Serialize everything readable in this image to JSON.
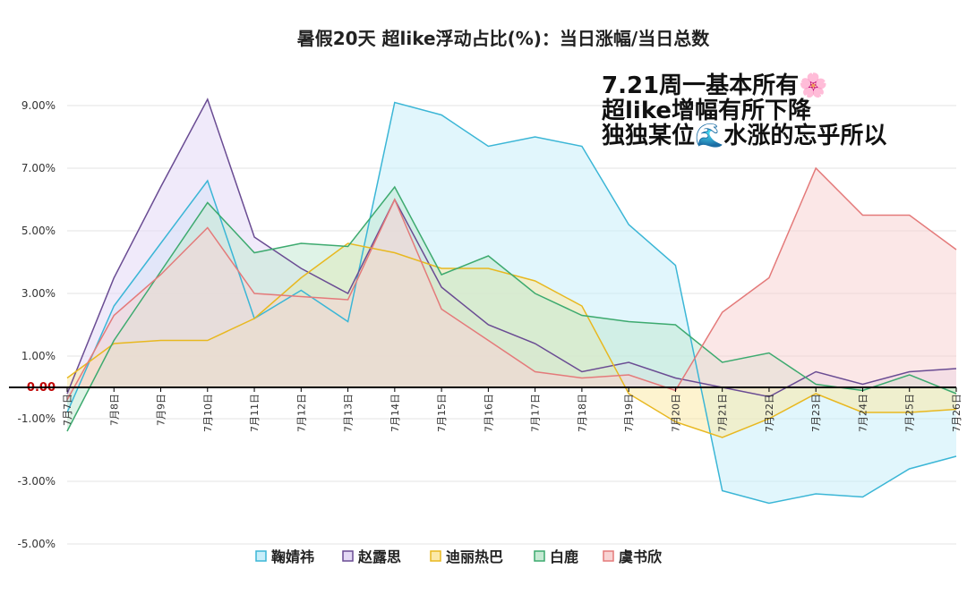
{
  "chart_data": {
    "type": "area",
    "title": "暑假20天 超like浮动占比(%)：当日涨幅/当日总数",
    "xlabel": "",
    "ylabel": "",
    "categories": [
      "7月7日",
      "7月8日",
      "7月9日",
      "7月10日",
      "7月11日",
      "7月12日",
      "7月13日",
      "7月14日",
      "7月15日",
      "7月16日",
      "7月17日",
      "7月18日",
      "7月19日",
      "7月20日",
      "7月21日",
      "7月22日",
      "7月23日",
      "7月24日",
      "7月25日",
      "7月26日"
    ],
    "y_ticks": [
      "9.00%",
      "7.00%",
      "5.00%",
      "3.00%",
      "1.00%",
      "0.00",
      "-1.00%",
      "-3.00%",
      "-5.00%"
    ],
    "ylim": [
      -5,
      9
    ],
    "grid": true,
    "legend_position": "bottom",
    "series": [
      {
        "name": "鞠婧祎",
        "color": "#3bb6d6",
        "fill": "#c8eefa",
        "values": [
          -0.8,
          2.6,
          4.6,
          6.6,
          2.2,
          3.1,
          2.1,
          9.1,
          8.7,
          7.7,
          8.0,
          7.7,
          5.2,
          3.9,
          -3.3,
          -3.7,
          -3.4,
          -3.5,
          -2.6,
          -2.2
        ]
      },
      {
        "name": "赵露思",
        "color": "#6a4c93",
        "fill": "#e4d9f5",
        "values": [
          -0.2,
          3.5,
          6.4,
          9.2,
          4.8,
          3.8,
          3.0,
          6.0,
          3.2,
          2.0,
          1.4,
          0.5,
          0.8,
          0.3,
          0.0,
          -0.3,
          0.5,
          0.1,
          0.5,
          0.6
        ]
      },
      {
        "name": "迪丽热巴",
        "color": "#e8b820",
        "fill": "#fbe9a8",
        "values": [
          0.3,
          1.4,
          1.5,
          1.5,
          2.2,
          3.5,
          4.6,
          4.3,
          3.8,
          3.8,
          3.4,
          2.6,
          -0.2,
          -1.1,
          -1.6,
          -1.0,
          -0.2,
          -0.8,
          -0.8,
          -0.7
        ]
      },
      {
        "name": "白鹿",
        "color": "#3daa6f",
        "fill": "#c5ead3",
        "values": [
          -1.4,
          1.5,
          3.7,
          5.9,
          4.3,
          4.6,
          4.5,
          6.4,
          3.6,
          4.2,
          3.0,
          2.3,
          2.1,
          2.0,
          0.8,
          1.1,
          0.1,
          -0.1,
          0.4,
          -0.2
        ]
      },
      {
        "name": "虞书欣",
        "color": "#e47a7a",
        "fill": "#f8d3d3",
        "values": [
          -0.4,
          2.3,
          3.6,
          5.1,
          3.0,
          2.9,
          2.8,
          6.0,
          2.5,
          1.5,
          0.5,
          0.3,
          0.4,
          -0.1,
          2.4,
          3.5,
          7.0,
          5.5,
          5.5,
          4.4
        ]
      }
    ],
    "annotation": {
      "lines": [
        "7.21周一基本所有🌸",
        "超like增幅有所下降",
        "独独某位🌊水涨的忘乎所以"
      ]
    }
  }
}
